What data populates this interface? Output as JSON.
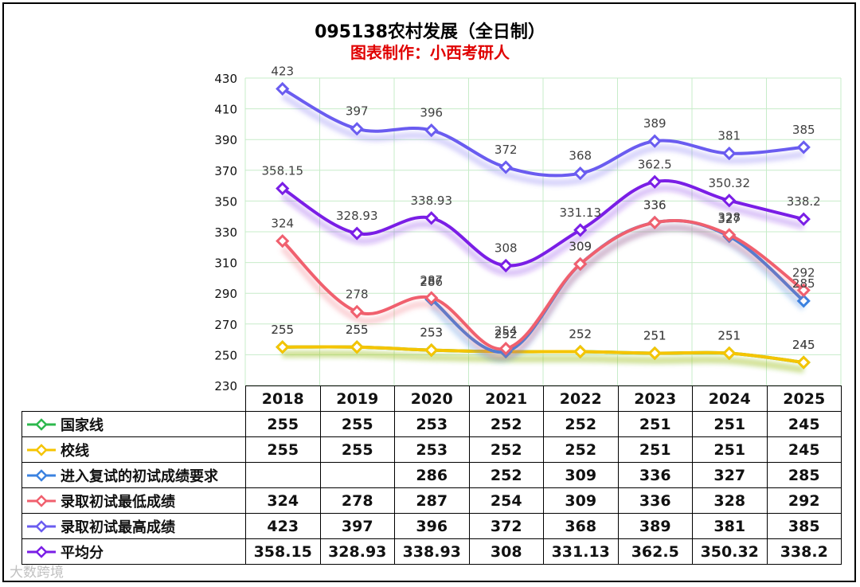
{
  "chart_data": {
    "type": "line",
    "title": "095138农村发展（全日制）",
    "subtitle": "图表制作：小西考研人",
    "categories": [
      "2018",
      "2019",
      "2020",
      "2021",
      "2022",
      "2023",
      "2024",
      "2025"
    ],
    "ylim": [
      230,
      430
    ],
    "yticks": [
      230,
      250,
      270,
      290,
      310,
      330,
      350,
      370,
      390,
      410,
      430
    ],
    "grid": true,
    "series": [
      {
        "name": "国家线",
        "color": "#2db84d",
        "values": [
          255,
          255,
          253,
          252,
          252,
          251,
          251,
          245
        ],
        "labels": [
          "255",
          "255",
          "253",
          "252",
          "252",
          "251",
          "251",
          "245"
        ]
      },
      {
        "name": "校线",
        "color": "#f5c400",
        "values": [
          255,
          255,
          253,
          252,
          252,
          251,
          251,
          245
        ],
        "labels": [
          "255",
          "255",
          "253",
          "252",
          "252",
          "251",
          "251",
          "245"
        ]
      },
      {
        "name": "进入复试的初试成绩要求",
        "color": "#3b82e0",
        "values": [
          null,
          null,
          286,
          252,
          309,
          336,
          327,
          285
        ],
        "labels": [
          "",
          "",
          "286",
          "252",
          "309",
          "336",
          "327",
          "285"
        ]
      },
      {
        "name": "录取初试最低成绩",
        "color": "#f0606e",
        "values": [
          324,
          278,
          287,
          254,
          309,
          336,
          328,
          292
        ],
        "labels": [
          "324",
          "278",
          "287",
          "254",
          "309",
          "336",
          "328",
          "292"
        ]
      },
      {
        "name": "录取初试最高成绩",
        "color": "#6a5cf0",
        "values": [
          423,
          397,
          396,
          372,
          368,
          389,
          381,
          385
        ],
        "labels": [
          "423",
          "397",
          "396",
          "372",
          "368",
          "389",
          "381",
          "385"
        ]
      },
      {
        "name": "平均分",
        "color": "#7a1ee6",
        "values": [
          358.15,
          328.93,
          338.93,
          308,
          331.13,
          362.5,
          350.32,
          338.2
        ],
        "labels": [
          "358.15",
          "328.93",
          "338.93",
          "308",
          "331.13",
          "362.5",
          "350.32",
          "338.2"
        ]
      }
    ]
  },
  "watermark": "大数跨境"
}
